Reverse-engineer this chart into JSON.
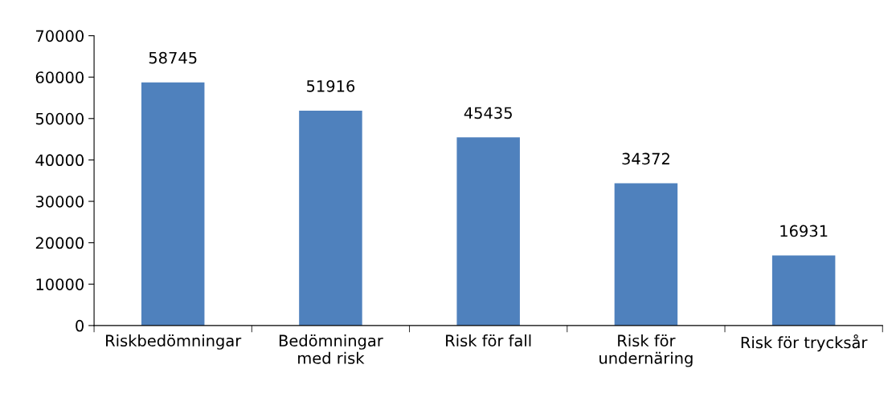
{
  "chart_data": {
    "type": "bar",
    "categories": [
      "Riskbedömningar",
      "Bedömningar\nmed risk",
      "Risk för fall",
      "Risk för\nundernäring",
      "Risk för trycksår"
    ],
    "values": [
      58745,
      51916,
      45435,
      34372,
      16931
    ],
    "color": "#4f81bd",
    "ylim": [
      0,
      70000
    ],
    "yticks": [
      0,
      10000,
      20000,
      30000,
      40000,
      50000,
      60000,
      70000
    ],
    "grid": false,
    "data_labels": true
  }
}
